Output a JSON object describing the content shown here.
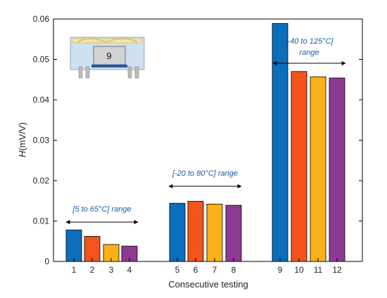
{
  "chart_data": {
    "type": "bar",
    "xlabel": "Consecutive testing",
    "ylabel": "H(mV/V)",
    "ylabel_italic_part": "H",
    "ylabel_rest": "(mV/V)",
    "ylim": [
      0,
      0.06
    ],
    "yticks": [
      "0",
      "0.01",
      "0.02",
      "0.03",
      "0.04",
      "0.05",
      "0.06"
    ],
    "categories": [
      "1",
      "2",
      "3",
      "4",
      "5",
      "6",
      "7",
      "8",
      "9",
      "10",
      "11",
      "12"
    ],
    "values": [
      0.0078,
      0.0062,
      0.0042,
      0.0038,
      0.0144,
      0.0149,
      0.0142,
      0.0139,
      0.0589,
      0.047,
      0.0457,
      0.0454
    ],
    "bar_colors": [
      "#0a6ebd",
      "#f2541b",
      "#fbb117",
      "#8e3a92"
    ],
    "grid": false,
    "groups": [
      {
        "label": "[5 to 65°C] range",
        "from": 0,
        "to": 3
      },
      {
        "label": "[-20 to 80°C] range",
        "from": 4,
        "to": 7
      },
      {
        "label_line1": "[-40 to 125°C]",
        "label_line2": "range",
        "from": 8,
        "to": 11
      }
    ],
    "inset_label": "9"
  }
}
